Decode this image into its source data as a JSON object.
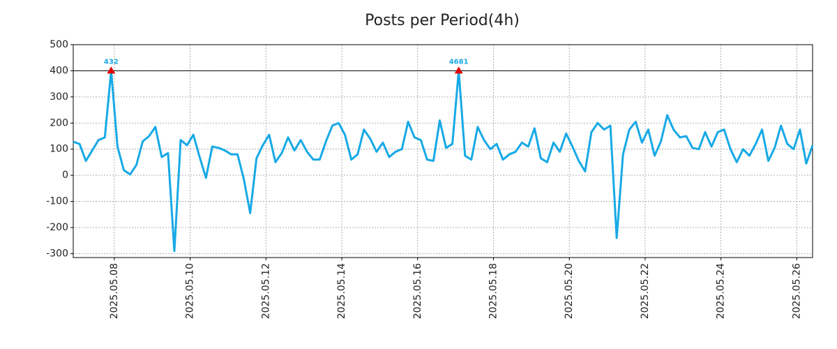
{
  "chart_data": {
    "type": "line",
    "title": "Posts per Period(4h)",
    "x": [
      "2025-05-06 22:00",
      "2025-05-07 02:00",
      "2025-05-07 06:00",
      "2025-05-07 10:00",
      "2025-05-07 14:00",
      "2025-05-07 18:00",
      "2025-05-07 22:00",
      "2025-05-08 02:00",
      "2025-05-08 06:00",
      "2025-05-08 10:00",
      "2025-05-08 14:00",
      "2025-05-08 18:00",
      "2025-05-08 22:00",
      "2025-05-09 02:00",
      "2025-05-09 06:00",
      "2025-05-09 10:00",
      "2025-05-09 14:00",
      "2025-05-09 18:00",
      "2025-05-09 22:00",
      "2025-05-10 02:00",
      "2025-05-10 06:00",
      "2025-05-10 10:00",
      "2025-05-10 14:00",
      "2025-05-10 18:00",
      "2025-05-10 22:00",
      "2025-05-11 02:00",
      "2025-05-11 06:00",
      "2025-05-11 10:00",
      "2025-05-11 14:00",
      "2025-05-11 18:00",
      "2025-05-11 22:00",
      "2025-05-12 02:00",
      "2025-05-12 06:00",
      "2025-05-12 10:00",
      "2025-05-12 14:00",
      "2025-05-12 18:00",
      "2025-05-12 22:00",
      "2025-05-13 02:00",
      "2025-05-13 06:00",
      "2025-05-13 10:00",
      "2025-05-13 14:00",
      "2025-05-13 18:00",
      "2025-05-13 22:00",
      "2025-05-14 02:00",
      "2025-05-14 06:00",
      "2025-05-14 10:00",
      "2025-05-14 14:00",
      "2025-05-14 18:00",
      "2025-05-14 22:00",
      "2025-05-15 02:00",
      "2025-05-15 06:00",
      "2025-05-15 10:00",
      "2025-05-15 14:00",
      "2025-05-15 18:00",
      "2025-05-15 22:00",
      "2025-05-16 02:00",
      "2025-05-16 06:00",
      "2025-05-16 10:00",
      "2025-05-16 14:00",
      "2025-05-16 18:00",
      "2025-05-16 22:00",
      "2025-05-17 02:00",
      "2025-05-17 06:00",
      "2025-05-17 10:00",
      "2025-05-17 14:00",
      "2025-05-17 18:00",
      "2025-05-17 22:00",
      "2025-05-18 02:00",
      "2025-05-18 06:00",
      "2025-05-18 10:00",
      "2025-05-18 14:00",
      "2025-05-18 18:00",
      "2025-05-18 22:00",
      "2025-05-19 02:00",
      "2025-05-19 06:00",
      "2025-05-19 10:00",
      "2025-05-19 14:00",
      "2025-05-19 18:00",
      "2025-05-19 22:00",
      "2025-05-20 02:00",
      "2025-05-20 06:00",
      "2025-05-20 10:00",
      "2025-05-20 14:00",
      "2025-05-20 18:00",
      "2025-05-20 22:00",
      "2025-05-21 02:00",
      "2025-05-21 06:00",
      "2025-05-21 10:00",
      "2025-05-21 14:00",
      "2025-05-21 18:00",
      "2025-05-21 22:00",
      "2025-05-22 02:00",
      "2025-05-22 06:00",
      "2025-05-22 10:00",
      "2025-05-22 14:00",
      "2025-05-22 18:00",
      "2025-05-22 22:00",
      "2025-05-23 02:00",
      "2025-05-23 06:00",
      "2025-05-23 10:00",
      "2025-05-23 14:00",
      "2025-05-23 18:00",
      "2025-05-23 22:00",
      "2025-05-24 02:00",
      "2025-05-24 06:00",
      "2025-05-24 10:00",
      "2025-05-24 14:00",
      "2025-05-24 18:00",
      "2025-05-24 22:00",
      "2025-05-25 02:00",
      "2025-05-25 06:00",
      "2025-05-25 10:00",
      "2025-05-25 14:00",
      "2025-05-25 18:00",
      "2025-05-25 22:00",
      "2025-05-26 02:00",
      "2025-05-26 06:00",
      "2025-05-26 10:00"
    ],
    "series": [
      {
        "color": "#17a9e6",
        "values": [
          128,
          120,
          55,
          95,
          135,
          145,
          400,
          110,
          20,
          3,
          40,
          130,
          150,
          185,
          70,
          85,
          -290,
          135,
          115,
          155,
          70,
          -10,
          110,
          105,
          95,
          80,
          80,
          -15,
          -145,
          65,
          115,
          155,
          50,
          85,
          145,
          95,
          135,
          90,
          60,
          60,
          130,
          190,
          200,
          155,
          60,
          80,
          175,
          140,
          90,
          125,
          70,
          90,
          100,
          205,
          145,
          135,
          60,
          55,
          210,
          105,
          120,
          400,
          75,
          60,
          185,
          135,
          100,
          120,
          60,
          80,
          90,
          125,
          110,
          180,
          65,
          50,
          125,
          90,
          160,
          110,
          55,
          15,
          165,
          200,
          175,
          190,
          -240,
          80,
          175,
          205,
          125,
          175,
          75,
          130,
          230,
          175,
          145,
          150,
          105,
          100,
          165,
          110,
          165,
          175,
          100,
          50,
          100,
          75,
          120,
          175,
          55,
          105,
          190,
          120,
          100,
          175,
          45,
          115
        ]
      }
    ],
    "annotations": [
      {
        "x": "2025-05-07 22:00",
        "y": 400,
        "label": "432",
        "color": "#e00000"
      },
      {
        "x": "2025-05-17 02:00",
        "y": 400,
        "label": "4681",
        "color": "#e00000"
      }
    ],
    "hline": 400,
    "xlim": [
      "2025-05-06 22:00",
      "2025-05-26 10:00"
    ],
    "xticks": [
      {
        "value": "2025-05-08 00:00",
        "label": "2025.05.08"
      },
      {
        "value": "2025-05-10 00:00",
        "label": "2025.05.10"
      },
      {
        "value": "2025-05-12 00:00",
        "label": "2025.05.12"
      },
      {
        "value": "2025-05-14 00:00",
        "label": "2025.05.14"
      },
      {
        "value": "2025-05-16 00:00",
        "label": "2025.05.16"
      },
      {
        "value": "2025-05-18 00:00",
        "label": "2025.05.18"
      },
      {
        "value": "2025-05-20 00:00",
        "label": "2025.05.20"
      },
      {
        "value": "2025-05-22 00:00",
        "label": "2025.05.22"
      },
      {
        "value": "2025-05-24 00:00",
        "label": "2025.05.24"
      },
      {
        "value": "2025-05-26 00:00",
        "label": "2025.05.26"
      }
    ],
    "ylim": [
      -315,
      500
    ],
    "yticks": [
      -300,
      -200,
      -100,
      0,
      100,
      200,
      300,
      400,
      500
    ],
    "grid": true
  }
}
